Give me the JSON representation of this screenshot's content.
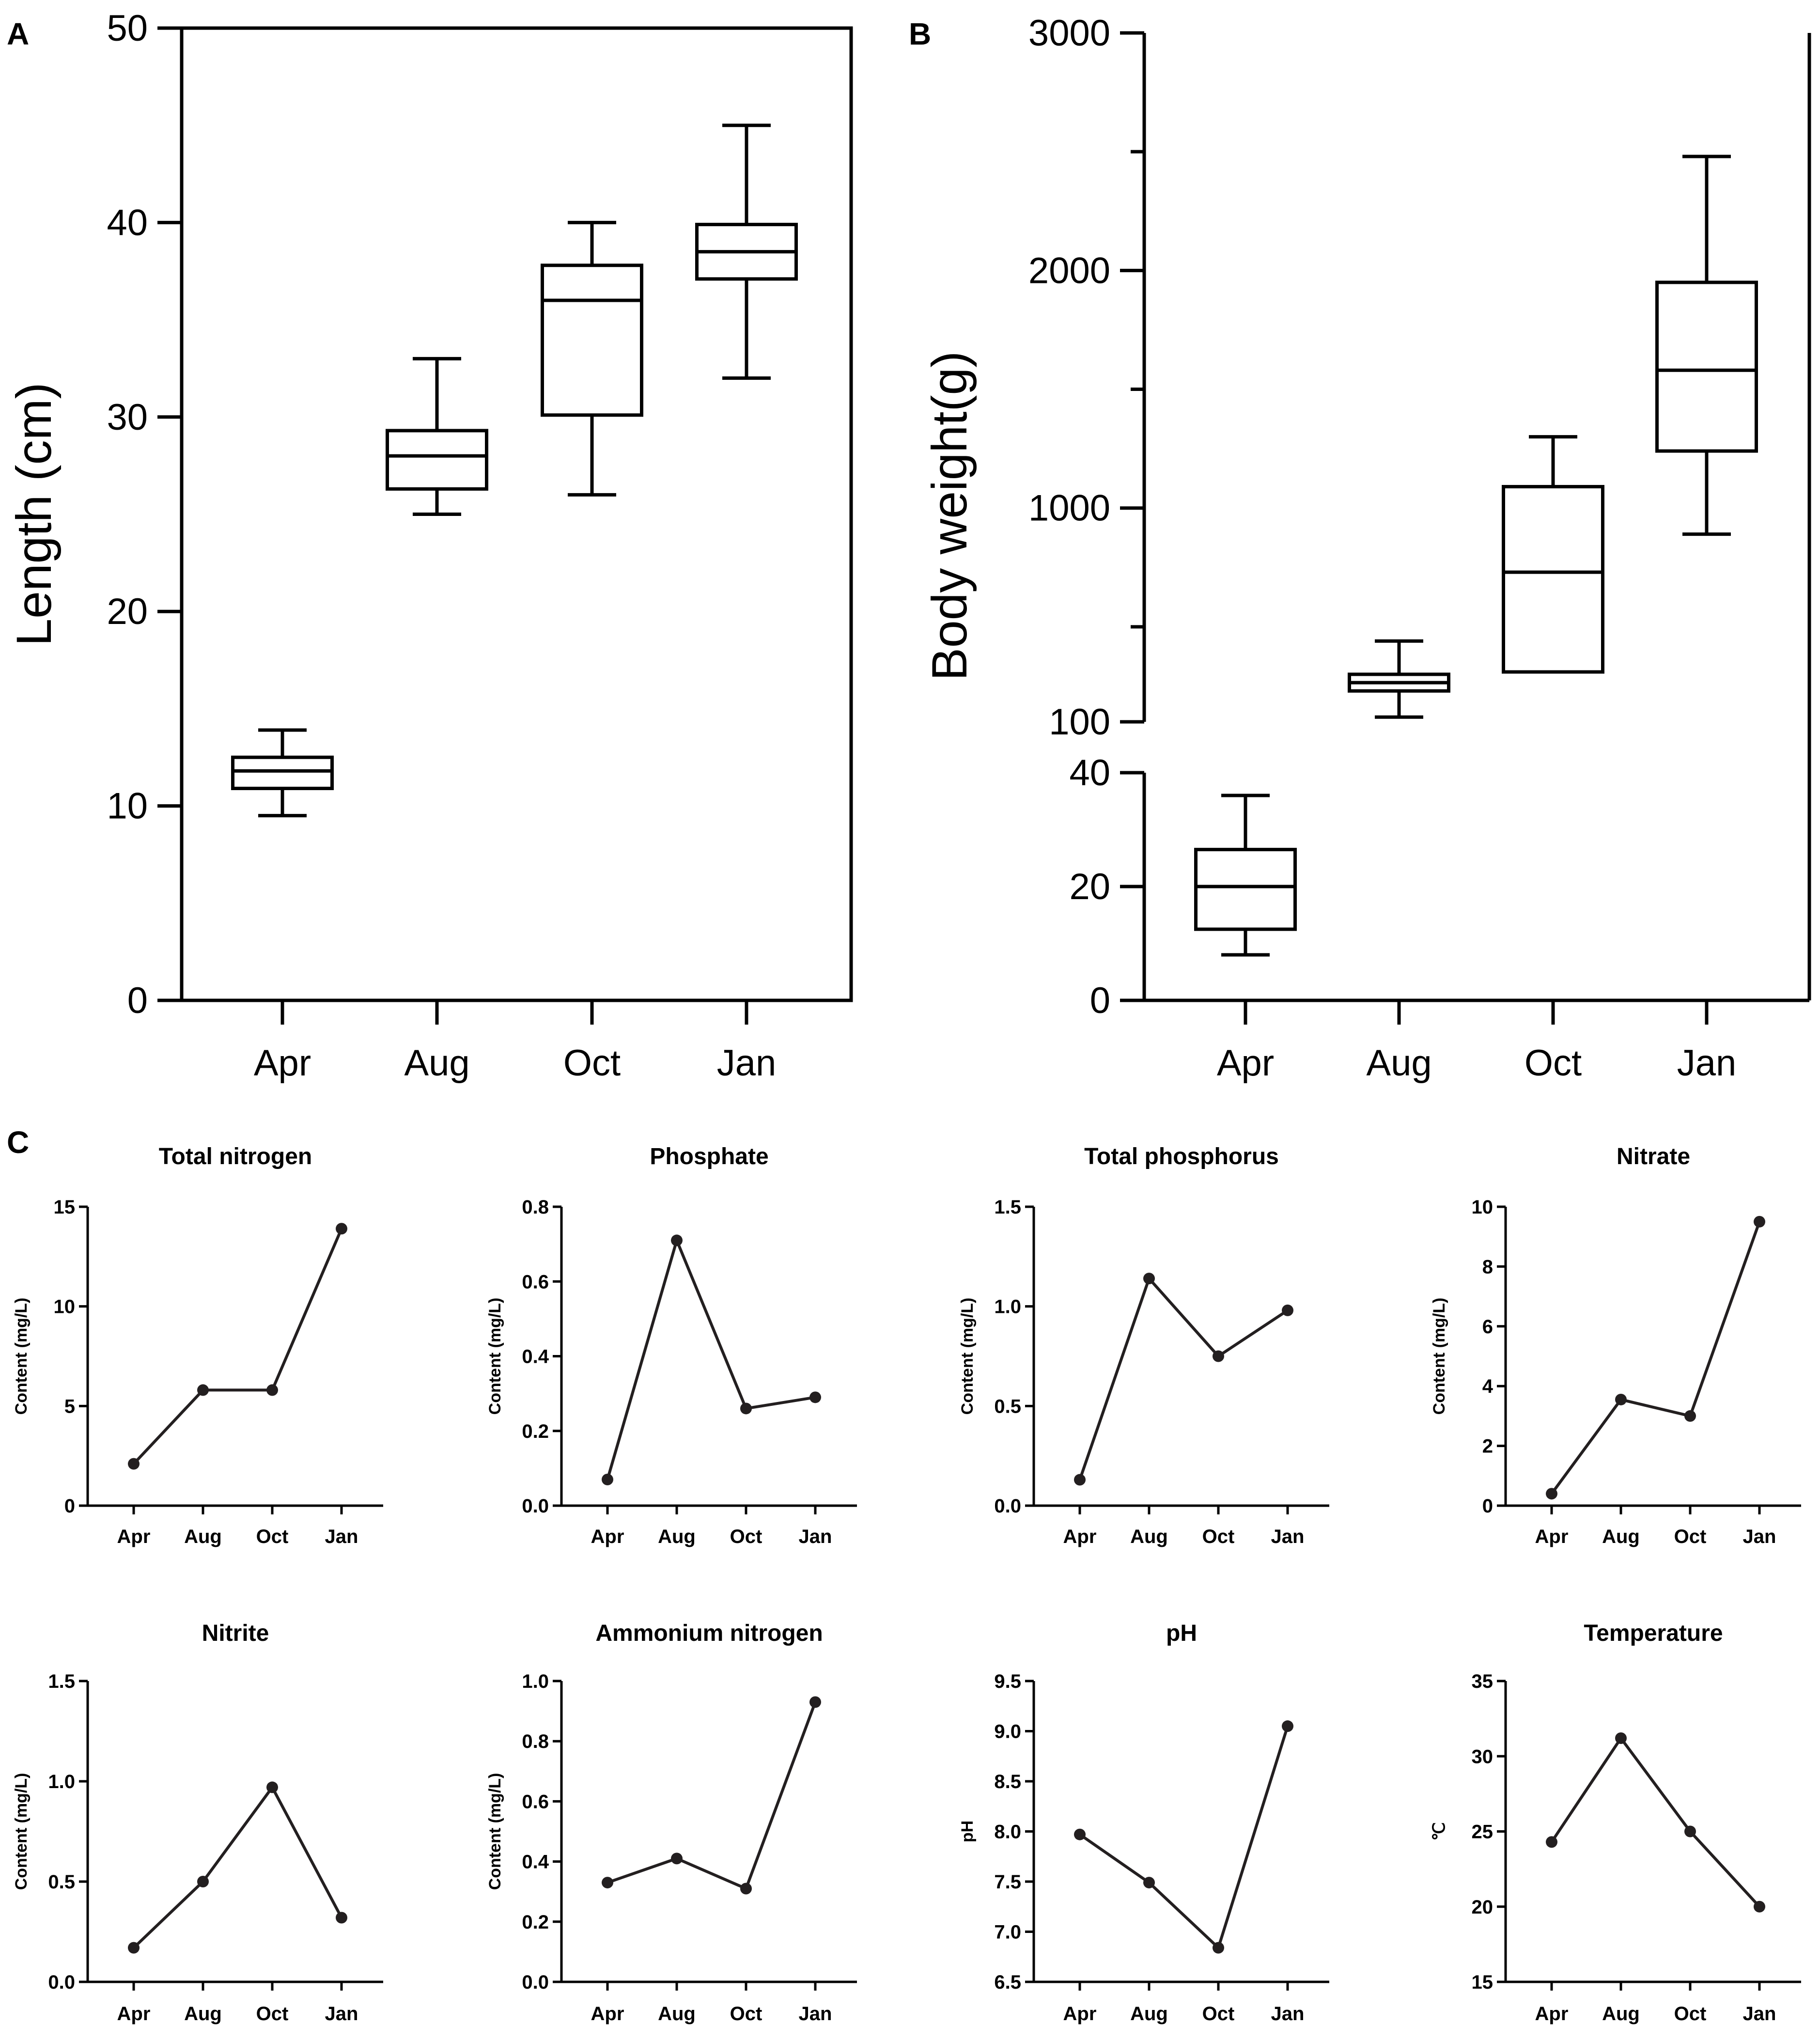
{
  "panel_labels": [
    "A",
    "B",
    "C"
  ],
  "chart_data": [
    {
      "type": "box",
      "panel": "A",
      "categories": [
        "Apr",
        "Aug",
        "Oct",
        "Jan"
      ],
      "boxes": [
        {
          "min": 9.5,
          "q1": 10.9,
          "median": 11.8,
          "q3": 12.5,
          "max": 13.9
        },
        {
          "min": 25,
          "q1": 26.3,
          "median": 28,
          "q3": 29.3,
          "max": 33
        },
        {
          "min": 26,
          "q1": 30.1,
          "median": 36,
          "q3": 37.8,
          "max": 40
        },
        {
          "min": 32,
          "q1": 37.1,
          "median": 38.5,
          "q3": 39.9,
          "max": 45
        }
      ],
      "ylabel": "Length (cm)",
      "ylim": [
        0,
        50
      ],
      "yticks": [
        "0",
        "10",
        "20",
        "30",
        "40",
        "50"
      ],
      "ytick_values": [
        0,
        10,
        20,
        30,
        40,
        50
      ]
    },
    {
      "type": "box",
      "panel": "B",
      "axis_break": true,
      "categories": [
        "Apr",
        "Aug",
        "Oct",
        "Jan"
      ],
      "boxes": [
        {
          "min": 8,
          "q1": 12.5,
          "median": 20,
          "q3": 26.5,
          "max": 36
        },
        {
          "min": 120,
          "q1": 230,
          "median": 265,
          "q3": 300,
          "max": 440
        },
        {
          "min": 310,
          "q1": 310,
          "median": 730,
          "q3": 1090,
          "max": 1300
        },
        {
          "min": 890,
          "q1": 1240,
          "median": 1580,
          "q3": 1950,
          "max": 2480
        }
      ],
      "ylabel": "Body weight(g)",
      "lower_segment": {
        "ylim": [
          0,
          40
        ],
        "yticks": [
          "0",
          "20",
          "40"
        ],
        "ytick_values": [
          0,
          20,
          40
        ]
      },
      "upper_segment": {
        "ylim": [
          100,
          3000
        ],
        "yticks": [
          "100",
          "1000",
          "2000",
          "3000"
        ],
        "ytick_values": [
          100,
          1000,
          2000,
          3000
        ],
        "minor_ticks": [
          500,
          1500,
          2500
        ]
      }
    },
    {
      "type": "line",
      "panel": "C",
      "title": "Total nitrogen",
      "ylabel": "Content (mg/L)",
      "categories": [
        "Apr",
        "Aug",
        "Oct",
        "Jan"
      ],
      "values": [
        2.1,
        5.8,
        5.8,
        13.9
      ],
      "ylim": [
        0,
        15
      ],
      "yticks": [
        "0",
        "5",
        "10",
        "15"
      ],
      "ytick_values": [
        0,
        5,
        10,
        15
      ]
    },
    {
      "type": "line",
      "panel": "C",
      "title": "Phosphate",
      "ylabel": "Content (mg/L)",
      "categories": [
        "Apr",
        "Aug",
        "Oct",
        "Jan"
      ],
      "values": [
        0.07,
        0.71,
        0.26,
        0.29
      ],
      "ylim": [
        0,
        0.8
      ],
      "yticks": [
        "0.0",
        "0.2",
        "0.4",
        "0.6",
        "0.8"
      ],
      "ytick_values": [
        0,
        0.2,
        0.4,
        0.6,
        0.8
      ]
    },
    {
      "type": "line",
      "panel": "C",
      "title": "Total phosphorus",
      "ylabel": "Content (mg/L)",
      "categories": [
        "Apr",
        "Aug",
        "Oct",
        "Jan"
      ],
      "values": [
        0.13,
        1.14,
        0.75,
        0.98
      ],
      "ylim": [
        0,
        1.5
      ],
      "yticks": [
        "0.0",
        "0.5",
        "1.0",
        "1.5"
      ],
      "ytick_values": [
        0,
        0.5,
        1.0,
        1.5
      ]
    },
    {
      "type": "line",
      "panel": "C",
      "title": "Nitrate",
      "ylabel": "Content (mg/L)",
      "categories": [
        "Apr",
        "Aug",
        "Oct",
        "Jan"
      ],
      "values": [
        0.4,
        3.55,
        3.0,
        9.5
      ],
      "ylim": [
        0,
        10
      ],
      "yticks": [
        "0",
        "2",
        "4",
        "6",
        "8",
        "10"
      ],
      "ytick_values": [
        0,
        2,
        4,
        6,
        8,
        10
      ]
    },
    {
      "type": "line",
      "panel": "C",
      "title": "Nitrite",
      "ylabel": "Content (mg/L)",
      "categories": [
        "Apr",
        "Aug",
        "Oct",
        "Jan"
      ],
      "values": [
        0.17,
        0.5,
        0.97,
        0.32
      ],
      "ylim": [
        0,
        1.5
      ],
      "yticks": [
        "0.0",
        "0.5",
        "1.0",
        "1.5"
      ],
      "ytick_values": [
        0,
        0.5,
        1.0,
        1.5
      ]
    },
    {
      "type": "line",
      "panel": "C",
      "title": "Ammonium nitrogen",
      "ylabel": "Content (mg/L)",
      "categories": [
        "Apr",
        "Aug",
        "Oct",
        "Jan"
      ],
      "values": [
        0.33,
        0.41,
        0.31,
        0.93
      ],
      "ylim": [
        0,
        1.0
      ],
      "yticks": [
        "0.0",
        "0.2",
        "0.4",
        "0.6",
        "0.8",
        "1.0"
      ],
      "ytick_values": [
        0,
        0.2,
        0.4,
        0.6,
        0.8,
        1.0
      ]
    },
    {
      "type": "line",
      "panel": "C",
      "title": "pH",
      "ylabel": "pH",
      "categories": [
        "Apr",
        "Aug",
        "Oct",
        "Jan"
      ],
      "values": [
        7.97,
        7.49,
        6.84,
        9.05
      ],
      "ylim": [
        6.5,
        9.5
      ],
      "yticks": [
        "6.5",
        "7.0",
        "7.5",
        "8.0",
        "8.5",
        "9.0",
        "9.5"
      ],
      "ytick_values": [
        6.5,
        7.0,
        7.5,
        8.0,
        8.5,
        9.0,
        9.5
      ]
    },
    {
      "type": "line",
      "panel": "C",
      "title": "Temperature",
      "ylabel": "℃",
      "categories": [
        "Apr",
        "Aug",
        "Oct",
        "Jan"
      ],
      "values": [
        24.3,
        31.2,
        25.0,
        20.0
      ],
      "ylim": [
        15,
        35
      ],
      "yticks": [
        "15",
        "20",
        "25",
        "30",
        "35"
      ],
      "ytick_values": [
        15,
        20,
        25,
        30,
        35
      ]
    }
  ]
}
